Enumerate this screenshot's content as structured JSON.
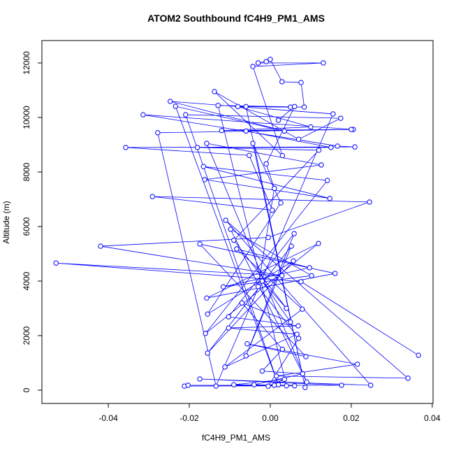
{
  "chart_data": {
    "type": "line",
    "title": "ATOM2 Southbound fC4H9_PM1_AMS",
    "x_label": "fC4H9_PM1_AMS",
    "y_label": "Altitude (m)",
    "xlim": [
      -0.0564,
      0.0402
    ],
    "ylim": [
      -487,
      12820
    ],
    "xticks": [
      -0.04,
      -0.02,
      {
        "value": 0,
        "label": "0.00"
      },
      0.02,
      0.04
    ],
    "yticks": [
      0,
      2000,
      4000,
      6000,
      8000,
      10000,
      12000
    ],
    "grid": false,
    "series": [
      {
        "color": "#0000ff",
        "x": [
          0.0366,
          0.0076,
          -0.0529,
          0.0029,
          -0.0419,
          -0.0005,
          0.0245,
          -0.0291,
          0.0005,
          -0.0052,
          -0.0357,
          0.0209,
          0.0166,
          -0.0314,
          0.0205,
          -0.0278,
          -0.0134,
          0.0155,
          -0.0247,
          0.0035,
          -0.0234,
          0.002,
          -0.0209,
          0.0174,
          0.007,
          -0.0138,
          0.003,
          -0.0043,
          0.0131,
          -0.003,
          -0.001,
          0,
          0.0029,
          0.0076,
          0.0084,
          -0.0129,
          0.004,
          -0.0212,
          0.006,
          -0.0203,
          0.0176,
          -0.0174,
          0.0248,
          -0.011,
          0.034,
          0.0015,
          0.0215,
          -0.0057,
          0.0088,
          -0.0174,
          0.016,
          -0.0157,
          0.0119,
          -0.016,
          0.0141,
          -0.0165,
          0.0147,
          -0.0162,
          0.0126,
          -0.0157,
          0.009,
          -0.0098,
          0.0102,
          -0.0116,
          0.0097,
          -0.0083,
          0.0079,
          -0.0112,
          0.0066,
          -0.0103,
          0.0069,
          -0.0103,
          0.0059,
          -0.006,
          0.0052,
          -0.0155,
          0.0057,
          -0.0155,
          0.0026,
          -0.0043,
          0.0086,
          -0.006,
          0.005,
          -0.008,
          0.01,
          -0.012,
          0.02,
          -0.006,
          0.015,
          -0.018,
          0.012,
          -0.009,
          0.004,
          -0.002,
          0.005,
          -0.007,
          0.003,
          -0.002,
          0.008,
          -0.004,
          0.001,
          -0.009,
          0.0035,
          -0.0005,
          0.007,
          -0.003,
          0.001,
          -0.001,
          0.006,
          0.002
        ],
        "values": [
          1280,
          3980,
          4660,
          4200,
          5280,
          5600,
          6900,
          7100,
          6600,
          8610,
          8900,
          8920,
          8950,
          10100,
          9560,
          9440,
          150,
          10130,
          10590,
          9500,
          10410,
          200,
          10100,
          9970,
          9200,
          10950,
          8600,
          11870,
          12000,
          12000,
          12050,
          12130,
          11310,
          11280,
          10380,
          10440,
          160,
          150,
          160,
          180,
          180,
          410,
          180,
          6230,
          440,
          520,
          950,
          1700,
          1230,
          5360,
          4280,
          3380,
          5380,
          2080,
          7690,
          8200,
          7030,
          7720,
          8260,
          9050,
          300,
          5900,
          4200,
          3790,
          4490,
          5180,
          2970,
          850,
          2050,
          2280,
          2360,
          2690,
          5740,
          1260,
          5280,
          1360,
          4740,
          2790,
          6870,
          9050,
          100,
          10400,
          10380,
          10400,
          9650,
          9520,
          9560,
          9500,
          8900,
          8900,
          8800,
          5500,
          3000,
          4000,
          2500,
          3200,
          1500,
          700,
          600,
          200,
          180,
          200,
          400,
          150,
          1900,
          3800,
          7400,
          8300,
          10400,
          9900
        ]
      }
    ]
  }
}
